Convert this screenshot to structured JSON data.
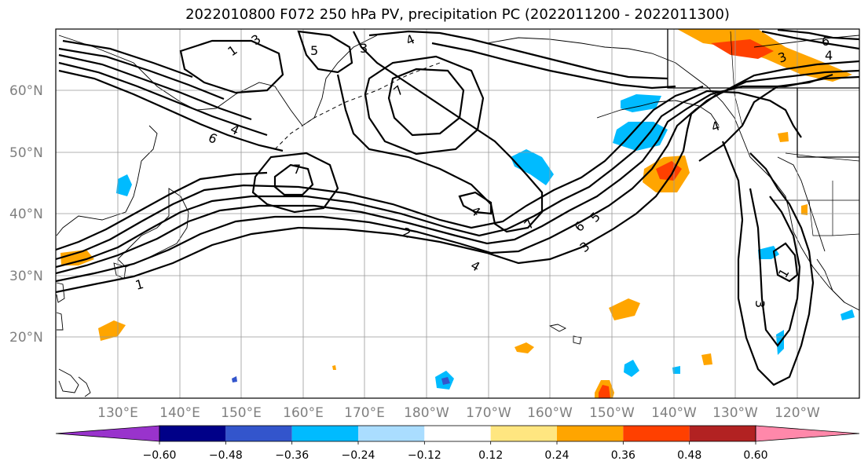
{
  "title": "2022010800 F072 250 hPa PV, precipitation PC (2022011200 - 2022011300)",
  "lat_labels": [
    "60°N",
    "50°N",
    "40°N",
    "30°N",
    "20°N"
  ],
  "lon_labels": [
    "130°E",
    "140°E",
    "150°E",
    "160°E",
    "170°E",
    "180°W",
    "170°W",
    "160°W",
    "150°W",
    "140°W",
    "130°W",
    "120°W"
  ],
  "colorbar": {
    "ticks": [
      "−0.60",
      "−0.48",
      "−0.36",
      "−0.24",
      "−0.12",
      "0.12",
      "0.24",
      "0.36",
      "0.48",
      "0.60"
    ],
    "colors": [
      "#9933cc",
      "#000088",
      "#3355cc",
      "#00bbff",
      "#aaddff",
      "#ffffff",
      "#ffe680",
      "#ffa500",
      "#ff4000",
      "#b22222",
      "#ff88aa"
    ]
  },
  "pv_labels": [
    "1",
    "2",
    "3",
    "4",
    "5",
    "6",
    "7"
  ],
  "colors": {
    "positive": "#ffa500",
    "strong_positive": "#ff4000",
    "negative": "#00bbff",
    "strong_negative": "#3355cc",
    "grid": "#999999"
  }
}
